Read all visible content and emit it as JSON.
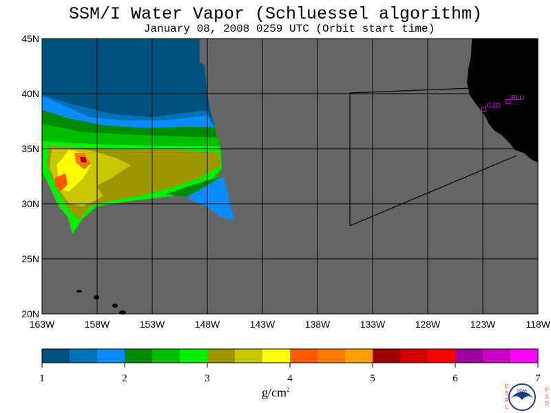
{
  "title": "SSM/I Water Vapor (Schluessel algorithm)",
  "subtitle": "January 08, 2008  0259 UTC  (Orbit start time)",
  "map": {
    "lat_labels": [
      "45N",
      "40N",
      "35N",
      "30N",
      "25N",
      "20N"
    ],
    "lon_labels": [
      "163W",
      "158W",
      "153W",
      "148W",
      "143W",
      "138W",
      "133W",
      "128W",
      "123W",
      "118W"
    ],
    "lon_range": [
      -163,
      -118
    ],
    "lat_range": [
      20,
      45
    ],
    "no_data_color": "#666666",
    "land_color": "#000000",
    "stations": [
      {
        "label": "CZD",
        "lon": -122.9,
        "lat": 38.6
      },
      {
        "label": "BLU",
        "lon": -120.7,
        "lat": 39.3
      }
    ],
    "station_color": "#ff00ff"
  },
  "colorbar": {
    "colors": [
      "#005080",
      "#0073b8",
      "#0a8cff",
      "#008a00",
      "#00bf00",
      "#00f000",
      "#9c9600",
      "#c8c800",
      "#ffff00",
      "#ff5a00",
      "#ff7800",
      "#ffa000",
      "#a00000",
      "#d20000",
      "#ff0000",
      "#a000a0",
      "#c800c8",
      "#ff00ff"
    ],
    "tick_labels": [
      "1",
      "2",
      "3",
      "4",
      "5",
      "6",
      "7"
    ],
    "units": "g/cm",
    "units_exp": "2"
  },
  "logo": {
    "left_letters": [
      "E",
      "S",
      "R",
      "L"
    ],
    "right_letters": [
      "P",
      "S",
      "D"
    ],
    "emblem_text": "NOAA"
  }
}
